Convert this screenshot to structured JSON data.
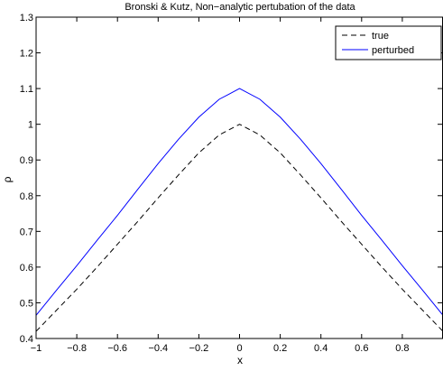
{
  "chart_data": {
    "type": "line",
    "title": "Bronski & Kutz, Non−analytic pertubation of the data",
    "xlabel": "x",
    "ylabel": "ρ",
    "xlim": [
      -1,
      1
    ],
    "ylim": [
      0.4,
      1.3
    ],
    "xticks": [
      -1,
      -0.8,
      -0.6,
      -0.4,
      -0.2,
      0,
      0.2,
      0.4,
      0.6,
      0.8
    ],
    "xtick_labels": [
      "−1",
      "−0.8",
      "−0.6",
      "−0.4",
      "−0.2",
      "0",
      "0.2",
      "0.4",
      "0.6",
      "0.8"
    ],
    "yticks": [
      0.4,
      0.5,
      0.6,
      0.7,
      0.8,
      0.9,
      1,
      1.1,
      1.2,
      1.3
    ],
    "ytick_labels": [
      "0.4",
      "0.5",
      "0.6",
      "0.7",
      "0.8",
      "0.9",
      "1",
      "1.1",
      "1.2",
      "1.3"
    ],
    "grid": false,
    "legend_position": "top-right",
    "series": [
      {
        "name": "true",
        "color": "#000000",
        "style": "dashed",
        "x": [
          -1,
          -0.9,
          -0.8,
          -0.7,
          -0.6,
          -0.5,
          -0.4,
          -0.3,
          -0.2,
          -0.1,
          0,
          0.1,
          0.2,
          0.3,
          0.4,
          0.5,
          0.6,
          0.7,
          0.8,
          0.9,
          1
        ],
        "y": [
          0.42,
          0.479,
          0.538,
          0.6,
          0.664,
          0.728,
          0.794,
          0.858,
          0.92,
          0.97,
          1.0,
          0.97,
          0.92,
          0.858,
          0.794,
          0.728,
          0.664,
          0.6,
          0.538,
          0.479,
          0.42
        ]
      },
      {
        "name": "perturbed",
        "color": "#0000ff",
        "style": "solid",
        "x": [
          -1,
          -0.9,
          -0.8,
          -0.7,
          -0.6,
          -0.5,
          -0.4,
          -0.3,
          -0.2,
          -0.1,
          0,
          0.1,
          0.2,
          0.3,
          0.4,
          0.5,
          0.6,
          0.7,
          0.8,
          0.9,
          1
        ],
        "y": [
          0.465,
          0.535,
          0.604,
          0.675,
          0.745,
          0.818,
          0.89,
          0.958,
          1.02,
          1.07,
          1.1,
          1.07,
          1.02,
          0.958,
          0.89,
          0.818,
          0.745,
          0.675,
          0.604,
          0.535,
          0.465
        ]
      }
    ]
  }
}
